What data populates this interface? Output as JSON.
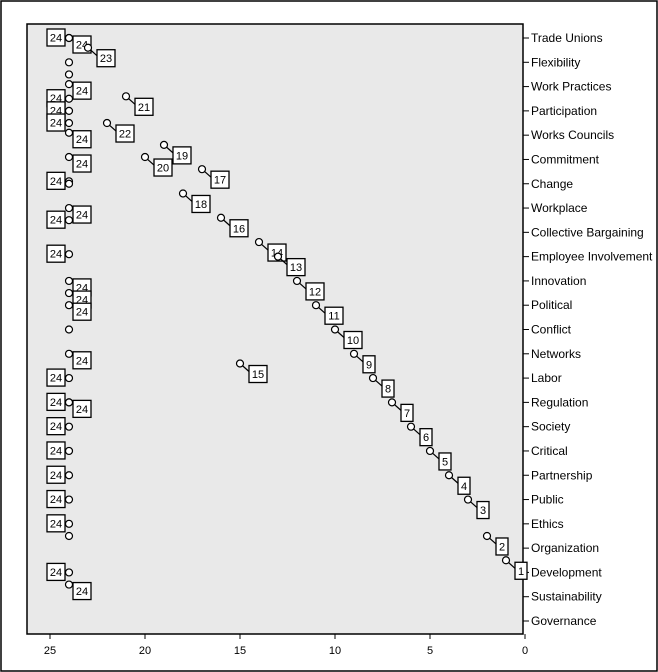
{
  "chart_data": {
    "type": "scatter",
    "title": "",
    "xlabel": "",
    "ylabel": "",
    "xlim": [
      26,
      0
    ],
    "x_ticks": [
      "25",
      "20",
      "15",
      "10",
      "5",
      "0"
    ],
    "categories": [
      "Trade Unions",
      "Flexibility",
      "Work Practices",
      "Participation",
      "Works Councils",
      "Commitment",
      "Change",
      "Workplace",
      "Collective Bargaining",
      "Employee Involvement",
      "Innovation",
      "Political",
      "Conflict",
      "Networks",
      "Labor",
      "Regulation",
      "Society",
      "Critical",
      "Partnership",
      "Public",
      "Ethics",
      "Organization",
      "Development",
      "Sustainability",
      "Governance"
    ],
    "points": [
      {
        "x": 24,
        "y": 1.0,
        "label": "24"
      },
      {
        "x": 24,
        "y": 1.0,
        "label": "24"
      },
      {
        "x": 23,
        "y": 1.4,
        "label": "23"
      },
      {
        "x": 24,
        "y": 2.0,
        "label": ""
      },
      {
        "x": 24,
        "y": 2.5,
        "label": ""
      },
      {
        "x": 24,
        "y": 2.9,
        "label": "24"
      },
      {
        "x": 24,
        "y": 3.5,
        "label": "24"
      },
      {
        "x": 21,
        "y": 3.4,
        "label": "21"
      },
      {
        "x": 24,
        "y": 4.0,
        "label": "24"
      },
      {
        "x": 22,
        "y": 4.5,
        "label": "22"
      },
      {
        "x": 24,
        "y": 4.5,
        "label": "24"
      },
      {
        "x": 24,
        "y": 4.9,
        "label": "24"
      },
      {
        "x": 19,
        "y": 5.4,
        "label": "19"
      },
      {
        "x": 24,
        "y": 5.9,
        "label": "24"
      },
      {
        "x": 20,
        "y": 5.9,
        "label": "20"
      },
      {
        "x": 17,
        "y": 6.4,
        "label": "17"
      },
      {
        "x": 24,
        "y": 6.9,
        "label": "24"
      },
      {
        "x": 24,
        "y": 7.0,
        "label": ""
      },
      {
        "x": 18,
        "y": 7.4,
        "label": "18"
      },
      {
        "x": 24,
        "y": 8.0,
        "label": "24"
      },
      {
        "x": 24,
        "y": 8.5,
        "label": "24"
      },
      {
        "x": 16,
        "y": 8.4,
        "label": "16"
      },
      {
        "x": 14,
        "y": 9.4,
        "label": "14"
      },
      {
        "x": 13,
        "y": 10.0,
        "label": "13"
      },
      {
        "x": 24,
        "y": 9.9,
        "label": "24"
      },
      {
        "x": 24,
        "y": 11.0,
        "label": "24"
      },
      {
        "x": 12,
        "y": 11.0,
        "label": "12"
      },
      {
        "x": 24,
        "y": 11.5,
        "label": "24"
      },
      {
        "x": 11,
        "y": 12.0,
        "label": "11"
      },
      {
        "x": 24,
        "y": 12.0,
        "label": "24"
      },
      {
        "x": 10,
        "y": 13.0,
        "label": "10"
      },
      {
        "x": 24,
        "y": 13.0,
        "label": ""
      },
      {
        "x": 9,
        "y": 14.0,
        "label": "9"
      },
      {
        "x": 24,
        "y": 14.0,
        "label": "24"
      },
      {
        "x": 24,
        "y": 15.0,
        "label": "24"
      },
      {
        "x": 15,
        "y": 14.4,
        "label": "15"
      },
      {
        "x": 8,
        "y": 15.0,
        "label": "8"
      },
      {
        "x": 24,
        "y": 16.0,
        "label": "24"
      },
      {
        "x": 24,
        "y": 16.0,
        "label": "24"
      },
      {
        "x": 7,
        "y": 16.0,
        "label": "7"
      },
      {
        "x": 24,
        "y": 17.0,
        "label": "24"
      },
      {
        "x": 6,
        "y": 17.0,
        "label": "6"
      },
      {
        "x": 24,
        "y": 18.0,
        "label": "24"
      },
      {
        "x": 5,
        "y": 18.0,
        "label": "5"
      },
      {
        "x": 24,
        "y": 19.0,
        "label": "24"
      },
      {
        "x": 4,
        "y": 19.0,
        "label": "4"
      },
      {
        "x": 24,
        "y": 20.0,
        "label": "24"
      },
      {
        "x": 3,
        "y": 20.0,
        "label": "3"
      },
      {
        "x": 24,
        "y": 21.0,
        "label": "24"
      },
      {
        "x": 24,
        "y": 21.5,
        "label": ""
      },
      {
        "x": 2,
        "y": 21.5,
        "label": "2"
      },
      {
        "x": 1,
        "y": 22.5,
        "label": "1"
      },
      {
        "x": 24,
        "y": 23.0,
        "label": "24"
      },
      {
        "x": 24,
        "y": 23.5,
        "label": "24"
      }
    ]
  }
}
